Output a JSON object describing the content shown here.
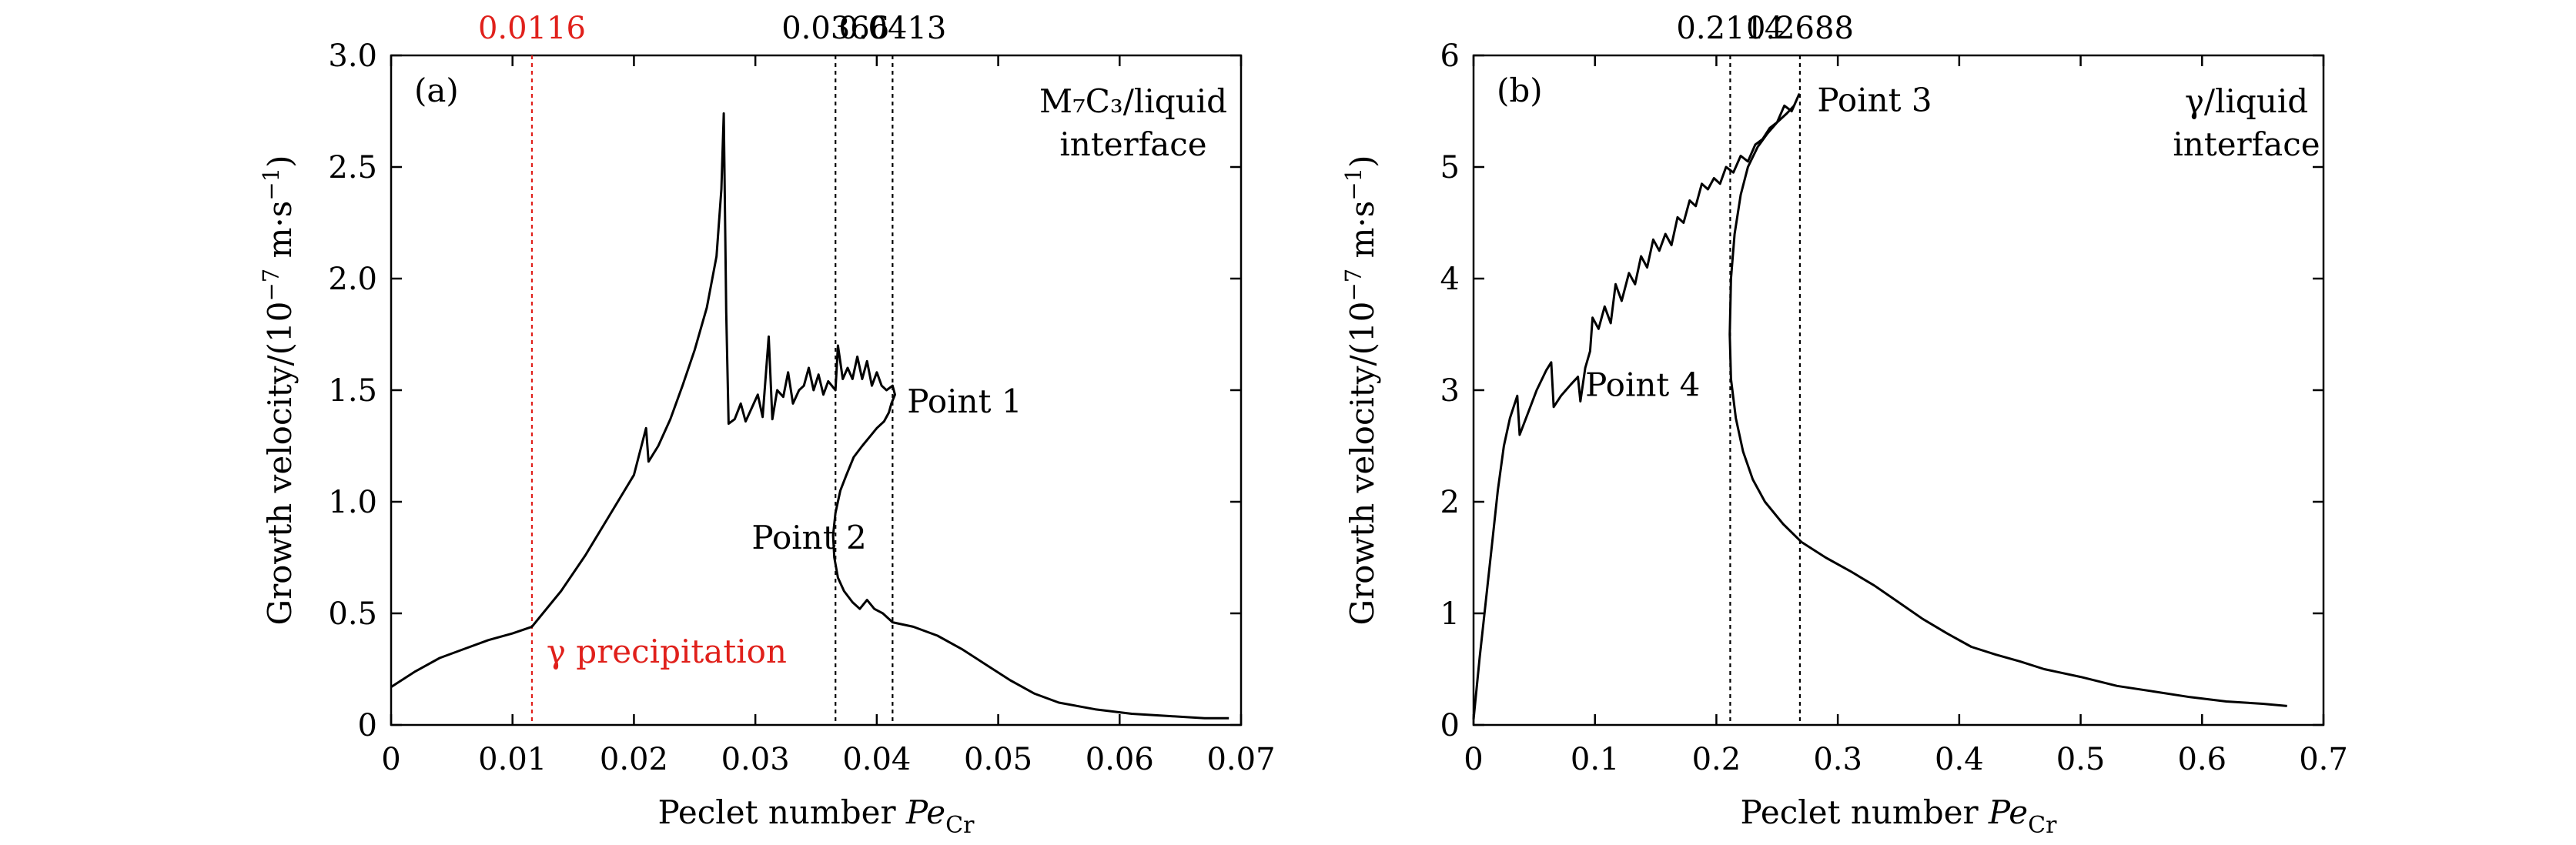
{
  "chart_data": [
    {
      "type": "line",
      "panel_label": "(a)",
      "xlabel_prefix": "Peclet number ",
      "xlabel_italic": "Pe",
      "xlabel_sub": "Cr",
      "ylabel_main": "Growth velocity/(10",
      "ylabel_exp": "−7",
      "ylabel_unit": " m·s",
      "ylabel_unit_exp": "−1",
      "ylabel_close": ")",
      "xlim": [
        0,
        0.07
      ],
      "ylim": [
        0,
        3.0
      ],
      "xticks": [
        0,
        0.01,
        0.02,
        0.03,
        0.04,
        0.05,
        0.06,
        0.07
      ],
      "xtick_labels": [
        "0",
        "0.01",
        "0.02",
        "0.03",
        "0.04",
        "0.05",
        "0.06",
        "0.07"
      ],
      "yticks": [
        0,
        0.5,
        1.0,
        1.5,
        2.0,
        2.5,
        3.0
      ],
      "ytick_labels": [
        "0",
        "0.5",
        "1.0",
        "1.5",
        "2.0",
        "2.5",
        "3.0"
      ],
      "interface_label_lines": [
        "M₇C₃/liquid",
        "interface"
      ],
      "vlines": [
        {
          "x": 0.0116,
          "label": "0.0116",
          "color": "#e0201b"
        },
        {
          "x": 0.0366,
          "label": "0.0366",
          "color": "#000000"
        },
        {
          "x": 0.0413,
          "label": "0.0413",
          "color": "#000000"
        }
      ],
      "point_labels": [
        {
          "text": "Point 1",
          "x": 0.0425,
          "y": 1.4
        },
        {
          "text": "Point 2",
          "x": 0.0297,
          "y": 0.79
        }
      ],
      "precip_label": {
        "text": "γ precipitation",
        "x": 0.0128,
        "y": 0.28,
        "color": "#e0201b"
      },
      "series": [
        {
          "points": [
            [
              0,
              0.17
            ],
            [
              0.002,
              0.24
            ],
            [
              0.004,
              0.3
            ],
            [
              0.006,
              0.34
            ],
            [
              0.008,
              0.38
            ],
            [
              0.01,
              0.41
            ],
            [
              0.0116,
              0.44
            ],
            [
              0.0125,
              0.5
            ],
            [
              0.014,
              0.6
            ],
            [
              0.016,
              0.76
            ],
            [
              0.018,
              0.94
            ],
            [
              0.02,
              1.12
            ],
            [
              0.021,
              1.33
            ],
            [
              0.0212,
              1.18
            ],
            [
              0.022,
              1.25
            ],
            [
              0.023,
              1.37
            ],
            [
              0.024,
              1.52
            ],
            [
              0.025,
              1.68
            ],
            [
              0.026,
              1.87
            ],
            [
              0.0268,
              2.1
            ],
            [
              0.0272,
              2.4
            ],
            [
              0.0274,
              2.74
            ],
            [
              0.0276,
              1.85
            ],
            [
              0.0278,
              1.35
            ],
            [
              0.0283,
              1.37
            ],
            [
              0.0288,
              1.44
            ],
            [
              0.0292,
              1.36
            ],
            [
              0.0297,
              1.42
            ],
            [
              0.0302,
              1.48
            ],
            [
              0.0306,
              1.38
            ],
            [
              0.0311,
              1.74
            ],
            [
              0.0314,
              1.37
            ],
            [
              0.0318,
              1.5
            ],
            [
              0.0323,
              1.47
            ],
            [
              0.0327,
              1.58
            ],
            [
              0.0331,
              1.44
            ],
            [
              0.0336,
              1.5
            ],
            [
              0.034,
              1.52
            ],
            [
              0.0344,
              1.6
            ],
            [
              0.0348,
              1.5
            ],
            [
              0.0352,
              1.57
            ],
            [
              0.0356,
              1.48
            ],
            [
              0.036,
              1.54
            ],
            [
              0.0366,
              1.5
            ],
            [
              0.0368,
              1.7
            ],
            [
              0.0372,
              1.55
            ],
            [
              0.0376,
              1.6
            ],
            [
              0.038,
              1.55
            ],
            [
              0.0384,
              1.65
            ],
            [
              0.0388,
              1.55
            ],
            [
              0.0392,
              1.63
            ],
            [
              0.0396,
              1.52
            ],
            [
              0.04,
              1.58
            ],
            [
              0.0404,
              1.52
            ],
            [
              0.0408,
              1.5
            ],
            [
              0.0413,
              1.52
            ],
            [
              0.0415,
              1.48
            ],
            [
              0.0412,
              1.44
            ],
            [
              0.041,
              1.4
            ],
            [
              0.0406,
              1.36
            ],
            [
              0.04,
              1.33
            ],
            [
              0.0394,
              1.29
            ],
            [
              0.0388,
              1.25
            ],
            [
              0.0381,
              1.2
            ],
            [
              0.0375,
              1.12
            ],
            [
              0.037,
              1.05
            ],
            [
              0.0366,
              0.95
            ],
            [
              0.0364,
              0.85
            ],
            [
              0.0365,
              0.75
            ],
            [
              0.0368,
              0.66
            ],
            [
              0.0373,
              0.6
            ],
            [
              0.038,
              0.55
            ],
            [
              0.0386,
              0.52
            ],
            [
              0.0392,
              0.56
            ],
            [
              0.0398,
              0.52
            ],
            [
              0.0405,
              0.5
            ],
            [
              0.0413,
              0.46
            ],
            [
              0.043,
              0.44
            ],
            [
              0.045,
              0.4
            ],
            [
              0.047,
              0.34
            ],
            [
              0.049,
              0.27
            ],
            [
              0.051,
              0.2
            ],
            [
              0.053,
              0.14
            ],
            [
              0.055,
              0.1
            ],
            [
              0.058,
              0.07
            ],
            [
              0.061,
              0.05
            ],
            [
              0.064,
              0.04
            ],
            [
              0.067,
              0.03
            ],
            [
              0.069,
              0.03
            ]
          ]
        }
      ]
    },
    {
      "type": "line",
      "panel_label": "(b)",
      "xlabel_prefix": "Peclet number ",
      "xlabel_italic": "Pe",
      "xlabel_sub": "Cr",
      "ylabel_main": "Growth velocity/(10",
      "ylabel_exp": "−7",
      "ylabel_unit": " m·s",
      "ylabel_unit_exp": "−1",
      "ylabel_close": ")",
      "xlim": [
        0,
        0.7
      ],
      "ylim": [
        0,
        6
      ],
      "xticks": [
        0,
        0.1,
        0.2,
        0.3,
        0.4,
        0.5,
        0.6,
        0.7
      ],
      "xtick_labels": [
        "0",
        "0.1",
        "0.2",
        "0.3",
        "0.4",
        "0.5",
        "0.6",
        "0.7"
      ],
      "yticks": [
        0,
        1,
        2,
        3,
        4,
        5,
        6
      ],
      "ytick_labels": [
        "0",
        "1",
        "2",
        "3",
        "4",
        "5",
        "6"
      ],
      "interface_label_lines": [
        "γ/liquid",
        "interface"
      ],
      "vlines": [
        {
          "x": 0.2114,
          "label": "0.2114",
          "color": "#000000"
        },
        {
          "x": 0.2688,
          "label": "0.2688",
          "color": "#000000"
        }
      ],
      "point_labels": [
        {
          "text": "Point 3",
          "x": 0.283,
          "y": 5.5
        },
        {
          "text": "Point 4",
          "x": 0.092,
          "y": 2.95
        }
      ],
      "series": [
        {
          "points": [
            [
              0,
              0.05
            ],
            [
              0.005,
              0.6
            ],
            [
              0.01,
              1.1
            ],
            [
              0.015,
              1.6
            ],
            [
              0.02,
              2.1
            ],
            [
              0.025,
              2.5
            ],
            [
              0.03,
              2.75
            ],
            [
              0.036,
              2.95
            ],
            [
              0.038,
              2.6
            ],
            [
              0.045,
              2.8
            ],
            [
              0.052,
              3.0
            ],
            [
              0.06,
              3.18
            ],
            [
              0.064,
              3.25
            ],
            [
              0.066,
              2.85
            ],
            [
              0.072,
              2.95
            ],
            [
              0.08,
              3.05
            ],
            [
              0.086,
              3.12
            ],
            [
              0.088,
              2.9
            ],
            [
              0.092,
              3.2
            ],
            [
              0.096,
              3.35
            ],
            [
              0.098,
              3.65
            ],
            [
              0.103,
              3.55
            ],
            [
              0.108,
              3.75
            ],
            [
              0.113,
              3.6
            ],
            [
              0.117,
              3.95
            ],
            [
              0.122,
              3.8
            ],
            [
              0.128,
              4.05
            ],
            [
              0.133,
              3.95
            ],
            [
              0.138,
              4.2
            ],
            [
              0.143,
              4.1
            ],
            [
              0.148,
              4.35
            ],
            [
              0.153,
              4.25
            ],
            [
              0.158,
              4.4
            ],
            [
              0.163,
              4.3
            ],
            [
              0.168,
              4.55
            ],
            [
              0.173,
              4.5
            ],
            [
              0.178,
              4.7
            ],
            [
              0.183,
              4.65
            ],
            [
              0.188,
              4.85
            ],
            [
              0.193,
              4.8
            ],
            [
              0.198,
              4.9
            ],
            [
              0.203,
              4.85
            ],
            [
              0.208,
              5.0
            ],
            [
              0.214,
              4.95
            ],
            [
              0.22,
              5.1
            ],
            [
              0.226,
              5.05
            ],
            [
              0.232,
              5.2
            ],
            [
              0.238,
              5.25
            ],
            [
              0.244,
              5.35
            ],
            [
              0.25,
              5.4
            ],
            [
              0.256,
              5.55
            ],
            [
              0.262,
              5.5
            ],
            [
              0.268,
              5.65
            ],
            [
              0.264,
              5.55
            ],
            [
              0.258,
              5.48
            ],
            [
              0.25,
              5.4
            ],
            [
              0.242,
              5.3
            ],
            [
              0.234,
              5.18
            ],
            [
              0.226,
              5.0
            ],
            [
              0.22,
              4.75
            ],
            [
              0.215,
              4.4
            ],
            [
              0.212,
              4.0
            ],
            [
              0.211,
              3.5
            ],
            [
              0.212,
              3.1
            ],
            [
              0.216,
              2.75
            ],
            [
              0.222,
              2.45
            ],
            [
              0.23,
              2.2
            ],
            [
              0.24,
              2.0
            ],
            [
              0.255,
              1.8
            ],
            [
              0.27,
              1.64
            ],
            [
              0.29,
              1.5
            ],
            [
              0.31,
              1.38
            ],
            [
              0.33,
              1.25
            ],
            [
              0.35,
              1.1
            ],
            [
              0.37,
              0.95
            ],
            [
              0.39,
              0.82
            ],
            [
              0.41,
              0.7
            ],
            [
              0.43,
              0.63
            ],
            [
              0.45,
              0.57
            ],
            [
              0.47,
              0.5
            ],
            [
              0.5,
              0.43
            ],
            [
              0.53,
              0.35
            ],
            [
              0.56,
              0.3
            ],
            [
              0.59,
              0.25
            ],
            [
              0.62,
              0.21
            ],
            [
              0.65,
              0.19
            ],
            [
              0.67,
              0.17
            ]
          ]
        }
      ]
    }
  ]
}
